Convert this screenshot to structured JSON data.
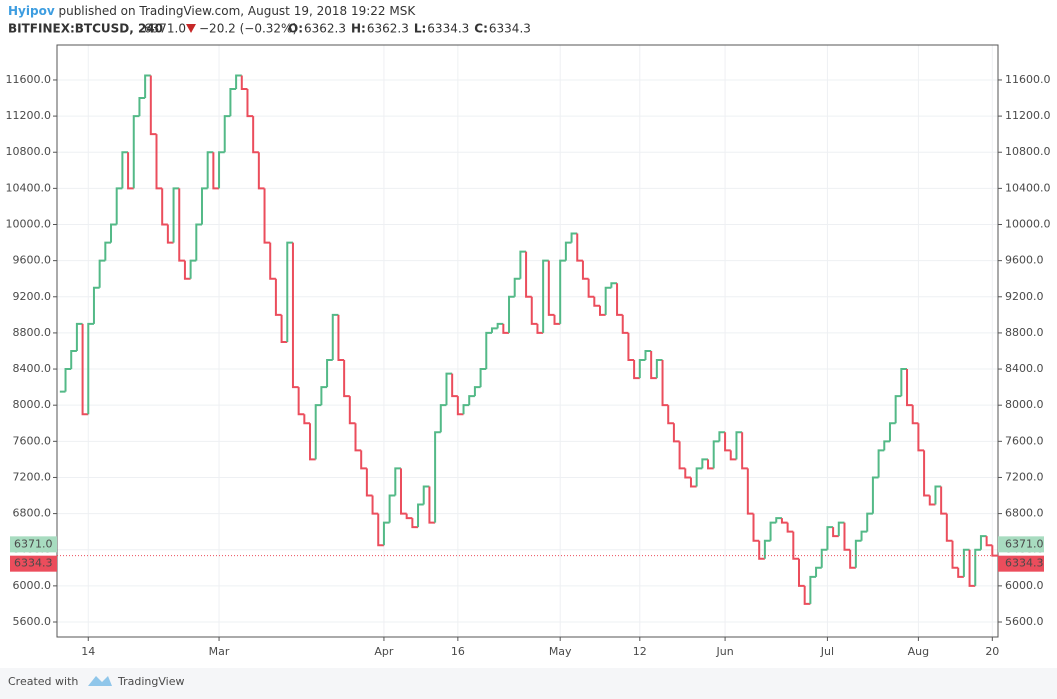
{
  "header": {
    "author": "Hyipov",
    "published": "published on TradingView.com, August 19, 2018 19:22 MSK",
    "symbol": "BITFINEX:BTCUSD, 240",
    "last": "6371.0",
    "change": "−20.2 (−0.32%)",
    "ohlc": [
      {
        "key": "O:",
        "value": "6362.3"
      },
      {
        "key": "H:",
        "value": "6362.3"
      },
      {
        "key": "L:",
        "value": "6334.3"
      },
      {
        "key": "C:",
        "value": "6334.3"
      }
    ]
  },
  "chart_data": {
    "type": "step",
    "values": [
      8150,
      8400,
      8600,
      8900,
      7900,
      8900,
      9300,
      9600,
      9800,
      10000,
      10400,
      10800,
      10400,
      11200,
      11400,
      11650,
      11000,
      10400,
      10000,
      9800,
      10400,
      9600,
      9400,
      9600,
      10000,
      10400,
      10800,
      10400,
      10800,
      11200,
      11500,
      11650,
      11500,
      11200,
      10800,
      10400,
      9800,
      9400,
      9000,
      8700,
      9800,
      8200,
      7900,
      7800,
      7400,
      8000,
      8200,
      8500,
      9000,
      8500,
      8100,
      7800,
      7500,
      7300,
      7000,
      6800,
      6450,
      6700,
      7000,
      7300,
      6800,
      6750,
      6650,
      6900,
      7100,
      6700,
      7700,
      8000,
      8350,
      8100,
      7900,
      8000,
      8100,
      8200,
      8400,
      8800,
      8850,
      8900,
      8800,
      9200,
      9400,
      9700,
      9200,
      8900,
      8800,
      9600,
      9000,
      8900,
      9600,
      9800,
      9900,
      9600,
      9400,
      9200,
      9100,
      9000,
      9300,
      9350,
      9000,
      8800,
      8500,
      8300,
      8500,
      8600,
      8300,
      8500,
      8000,
      7800,
      7600,
      7300,
      7200,
      7100,
      7300,
      7400,
      7300,
      7600,
      7700,
      7500,
      7400,
      7700,
      7300,
      6800,
      6500,
      6300,
      6500,
      6700,
      6750,
      6700,
      6600,
      6300,
      6000,
      5800,
      6100,
      6200,
      6400,
      6650,
      6550,
      6700,
      6400,
      6200,
      6500,
      6600,
      6800,
      7200,
      7500,
      7600,
      7800,
      8100,
      8400,
      8000,
      7800,
      7500,
      7000,
      6900,
      7100,
      6800,
      6500,
      6200,
      6100,
      6400,
      6000,
      6400,
      6550,
      6450,
      6334.3
    ],
    "up_color": "#53b987",
    "down_color": "#eb4d5c",
    "xlim": [
      -0.5,
      165
    ],
    "xticks": [
      {
        "value": 5,
        "label": "14"
      },
      {
        "value": 28,
        "label": "Mar"
      },
      {
        "value": 57,
        "label": "Apr"
      },
      {
        "value": 70,
        "label": "16"
      },
      {
        "value": 88,
        "label": "May"
      },
      {
        "value": 102,
        "label": "12"
      },
      {
        "value": 117,
        "label": "Jun"
      },
      {
        "value": 135,
        "label": "Jul"
      },
      {
        "value": 151,
        "label": "Aug"
      },
      {
        "value": 164,
        "label": "20"
      }
    ],
    "ylim": [
      5434,
      11987
    ],
    "yticks": [
      {
        "value": 5600,
        "label": "5600.0"
      },
      {
        "value": 6000,
        "label": "6000.0"
      },
      {
        "value": 6400,
        "label": "6400.0"
      },
      {
        "value": 6800,
        "label": "6800.0"
      },
      {
        "value": 7200,
        "label": "7200.0"
      },
      {
        "value": 7600,
        "label": "7600.0"
      },
      {
        "value": 8000,
        "label": "8000.0"
      },
      {
        "value": 8400,
        "label": "8400.0"
      },
      {
        "value": 8800,
        "label": "8800.0"
      },
      {
        "value": 9200,
        "label": "9200.0"
      },
      {
        "value": 9600,
        "label": "9600.0"
      },
      {
        "value": 10000,
        "label": "10000.0"
      },
      {
        "value": 10400,
        "label": "10400.0"
      },
      {
        "value": 10800,
        "label": "10800.0"
      },
      {
        "value": 11200,
        "label": "11200.0"
      },
      {
        "value": 11600,
        "label": "11600.0"
      }
    ],
    "grid": true,
    "price_labels": [
      {
        "value": 6371.0,
        "label": "6371.0",
        "color": "#a8dcc0"
      },
      {
        "value": 6334.3,
        "label": "6334.3",
        "color": "#eb4d5c"
      }
    ]
  },
  "footer": {
    "created": "Created with",
    "brand": "TradingView"
  }
}
